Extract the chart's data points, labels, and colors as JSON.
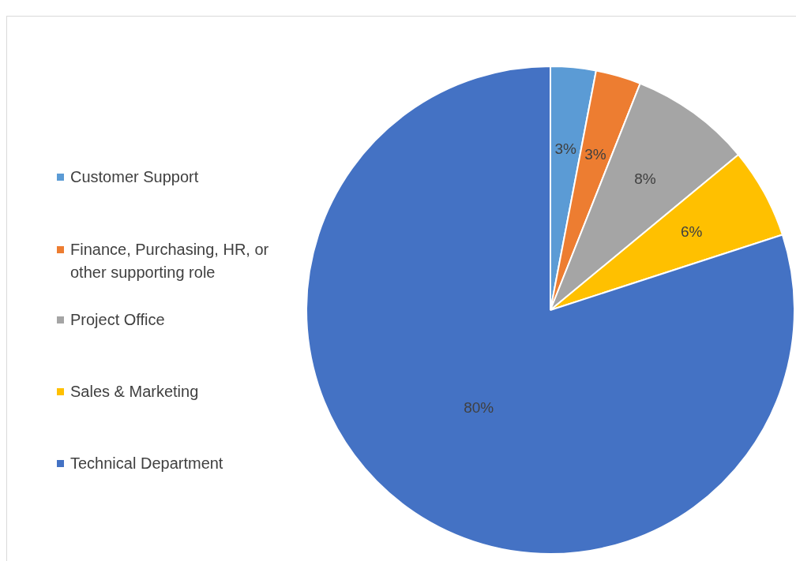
{
  "chart_data": {
    "type": "pie",
    "categories": [
      "Customer Support",
      "Finance, Purchasing, HR, or other supporting role",
      "Project Office",
      "Sales & Marketing",
      "Technical Department"
    ],
    "values": [
      3,
      3,
      8,
      6,
      80
    ],
    "colors": [
      "#5b9bd5",
      "#ed7d31",
      "#a5a5a5",
      "#ffc000",
      "#4472c4"
    ],
    "value_labels": [
      "3%",
      "3%",
      "8%",
      "6%",
      "80%"
    ],
    "legend": "left"
  }
}
